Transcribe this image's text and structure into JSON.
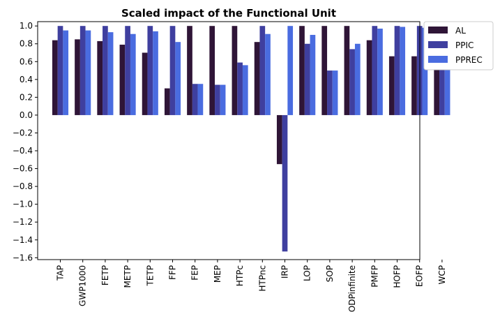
{
  "chart_data": {
    "type": "bar",
    "title": "Scaled impact of the Functional Unit",
    "xlabel": "",
    "ylabel": "",
    "categories": [
      "TAP",
      "GWP1000",
      "FETP",
      "METP",
      "TETP",
      "FFP",
      "FEP",
      "MEP",
      "HTPc",
      "HTPnc",
      "IRP",
      "LOP",
      "SOP",
      "ODPinfinite",
      "PMFP",
      "HOFP",
      "EOFP",
      "WCP"
    ],
    "series": [
      {
        "name": "AL",
        "color": "#2f1537",
        "values": [
          0.84,
          0.85,
          0.83,
          0.79,
          0.7,
          0.3,
          1.0,
          1.0,
          1.0,
          0.82,
          -0.55,
          1.0,
          1.0,
          1.0,
          0.84,
          0.66,
          0.66,
          0.84
        ]
      },
      {
        "name": "PPIC",
        "color": "#3f3f9f",
        "values": [
          1.0,
          1.0,
          1.0,
          1.0,
          1.0,
          1.0,
          0.35,
          0.34,
          0.59,
          1.0,
          -1.53,
          0.8,
          0.5,
          0.74,
          1.0,
          1.0,
          1.0,
          1.0
        ]
      },
      {
        "name": "PPREC",
        "color": "#4a6ce0",
        "values": [
          0.95,
          0.95,
          0.93,
          0.91,
          0.94,
          0.82,
          0.35,
          0.34,
          0.56,
          0.91,
          1.0,
          0.9,
          0.5,
          0.8,
          0.97,
          0.99,
          0.98,
          0.86
        ]
      }
    ],
    "yticks": [
      "1.0",
      "0.8",
      "0.6",
      "0.4",
      "0.2",
      "0.0",
      "−0.2",
      "−0.4",
      "−0.6",
      "−0.8",
      "−1.0",
      "−1.2",
      "−1.4",
      "−1.6"
    ],
    "ylim": [
      -1.6,
      1.0
    ],
    "grid": false,
    "legend_position": "outside-top-right"
  }
}
